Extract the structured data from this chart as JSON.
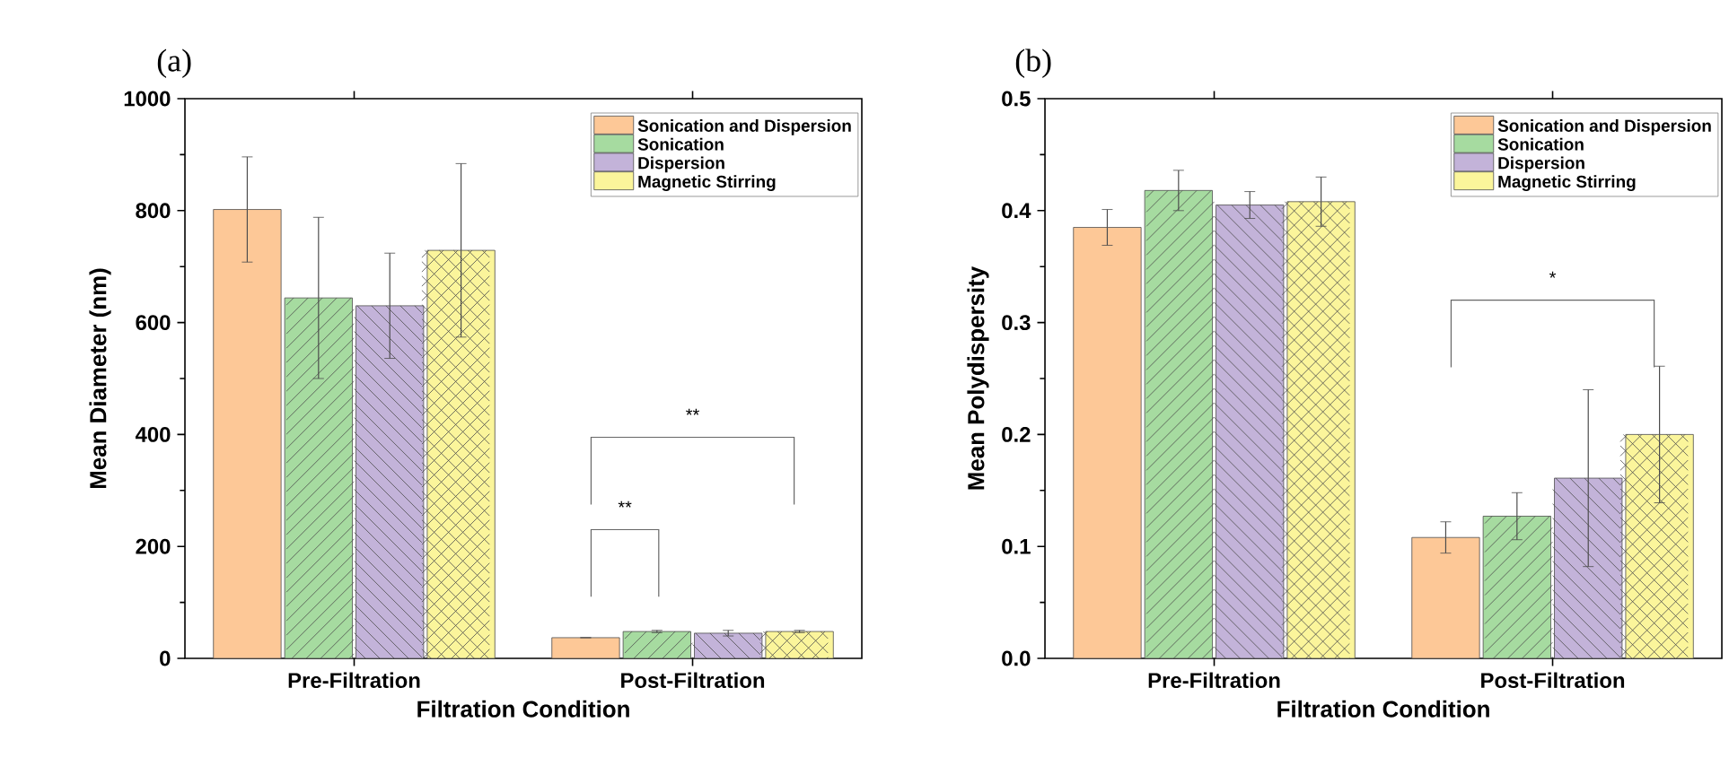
{
  "chart_data": [
    {
      "type": "bar",
      "title": "(a)",
      "xlabel": "Filtration Condition",
      "ylabel": "Mean Diameter (nm)",
      "categories": [
        "Pre-Filtration",
        "Post-Filtration"
      ],
      "series": [
        {
          "name": "Sonication and Dispersion",
          "color": "#fdc897",
          "values": [
            802,
            37
          ],
          "errors": [
            94,
            0
          ]
        },
        {
          "name": "Sonication",
          "color": "#a6dba0",
          "values": [
            644,
            48
          ],
          "errors": [
            144,
            2
          ]
        },
        {
          "name": "Dispersion",
          "color": "#c3b3d9",
          "values": [
            630,
            45
          ],
          "errors": [
            94,
            5
          ]
        },
        {
          "name": "Magnetic Stirring",
          "color": "#fbf59b",
          "values": [
            729,
            48
          ],
          "errors": [
            155,
            2
          ]
        }
      ],
      "ylim": [
        0,
        1000
      ],
      "yticks": [
        0,
        200,
        400,
        600,
        800,
        1000
      ],
      "legend": "top right",
      "grid": false,
      "annotations": [
        "**",
        "**"
      ]
    },
    {
      "type": "bar",
      "title": "(b)",
      "xlabel": "Filtration Condition",
      "ylabel": "Mean Polydispersity",
      "categories": [
        "Pre-Filtration",
        "Post-Filtration"
      ],
      "series": [
        {
          "name": "Sonication and Dispersion",
          "color": "#fdc897",
          "values": [
            0.385,
            0.108
          ],
          "errors": [
            0.016,
            0.014
          ]
        },
        {
          "name": "Sonication",
          "color": "#a6dba0",
          "values": [
            0.418,
            0.127
          ],
          "errors": [
            0.018,
            0.021
          ]
        },
        {
          "name": "Dispersion",
          "color": "#c3b3d9",
          "values": [
            0.405,
            0.161
          ],
          "errors": [
            0.012,
            0.079
          ]
        },
        {
          "name": "Magnetic Stirring",
          "color": "#fbf59b",
          "values": [
            0.408,
            0.2
          ],
          "errors": [
            0.022,
            0.061
          ]
        }
      ],
      "ylim": [
        0,
        0.5
      ],
      "yticks": [
        {
          "value": 0,
          "label": "0.0"
        },
        0.1,
        0.2,
        0.3,
        0.4,
        0.5
      ],
      "legend": "top right",
      "grid": false,
      "annotations": [
        "*"
      ]
    }
  ]
}
